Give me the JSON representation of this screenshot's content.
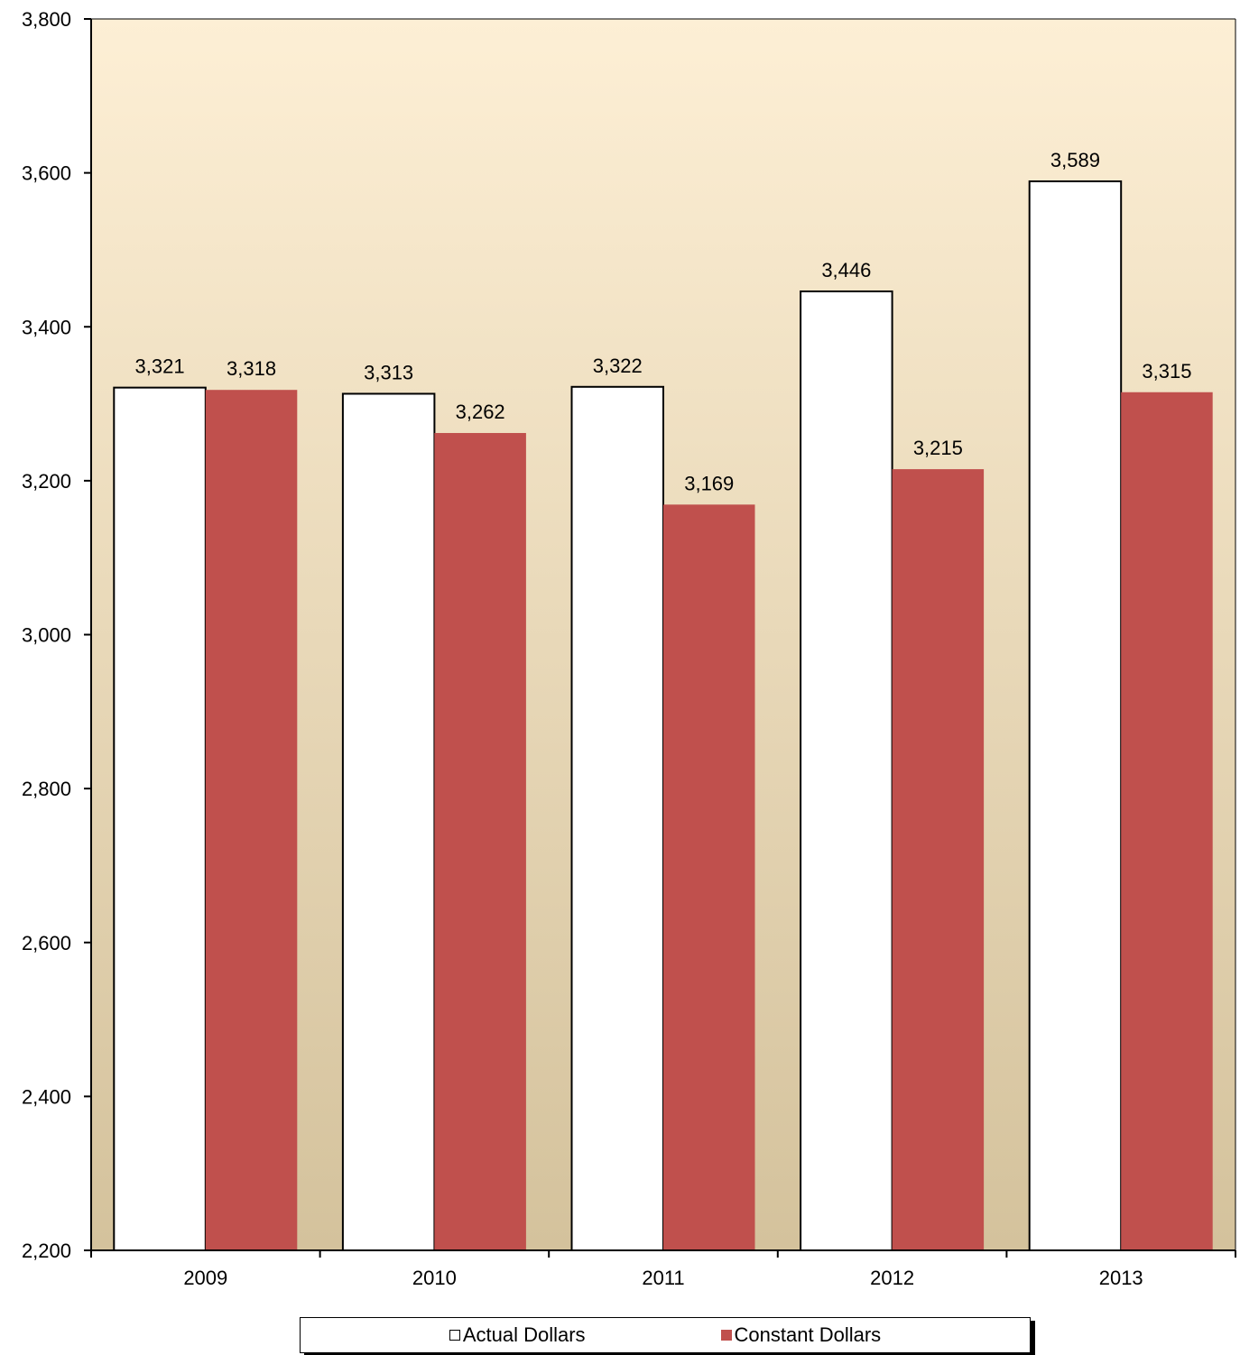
{
  "chart_data": {
    "type": "bar",
    "categories": [
      "2009",
      "2010",
      "2011",
      "2012",
      "2013"
    ],
    "series": [
      {
        "name": "Actual Dollars",
        "values": [
          3321,
          3313,
          3322,
          3446,
          3589
        ],
        "color": "#ffffff",
        "labels": [
          "3,321",
          "3,313",
          "3,322",
          "3,446",
          "3,589"
        ]
      },
      {
        "name": "Constant Dollars",
        "values": [
          3318,
          3262,
          3169,
          3215,
          3315
        ],
        "color": "#c0504d",
        "labels": [
          "3,318",
          "3,262",
          "3,169",
          "3,215",
          "3,315"
        ]
      }
    ],
    "ylim": [
      2200,
      3800
    ],
    "yticks": [
      2200,
      2400,
      2600,
      2800,
      3000,
      3200,
      3400,
      3600,
      3800
    ],
    "ytick_labels": [
      "2,200",
      "2,400",
      "2,600",
      "2,800",
      "3,000",
      "3,200",
      "3,400",
      "3,600",
      "3,800"
    ],
    "title": "",
    "xlabel": "",
    "ylabel": "",
    "grid": false,
    "legend_position": "bottom",
    "plot_background": {
      "top": "#fdefd5",
      "bottom": "#d4c29c"
    }
  }
}
